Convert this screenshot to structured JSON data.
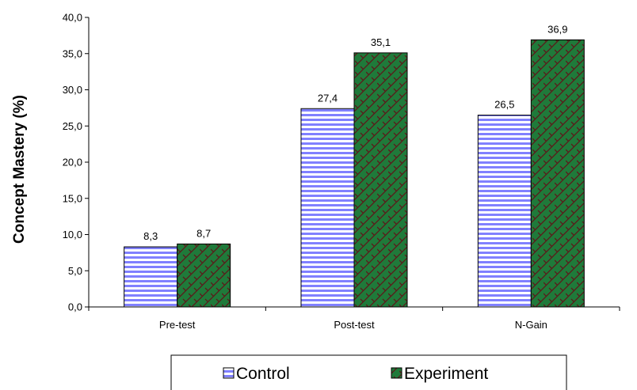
{
  "chart_data": {
    "type": "bar",
    "title": "",
    "xlabel": "",
    "ylabel": "Concept Mastery (%)",
    "ylim": [
      0,
      40
    ],
    "ytick_step": 5,
    "ytick_labels": [
      "0,0",
      "5,0",
      "10,0",
      "15,0",
      "20,0",
      "25,0",
      "30,0",
      "35,0",
      "40,0"
    ],
    "categories": [
      "Pre-test",
      "Post-test",
      "N-Gain"
    ],
    "series": [
      {
        "name": "Control",
        "values": [
          8.3,
          27.4,
          26.5
        ],
        "labels": [
          "8,3",
          "27,4",
          "26,5"
        ],
        "pattern": "horizontal-stripes",
        "color": "#8080ff",
        "fill2": "#ffffff"
      },
      {
        "name": "Experiment",
        "values": [
          8.7,
          35.1,
          36.9
        ],
        "labels": [
          "8,7",
          "35,1",
          "36,9"
        ],
        "pattern": "brick",
        "color": "#1f7a3a",
        "line": "#5a1a1a"
      }
    ],
    "legend_position": "bottom",
    "grid": false
  }
}
